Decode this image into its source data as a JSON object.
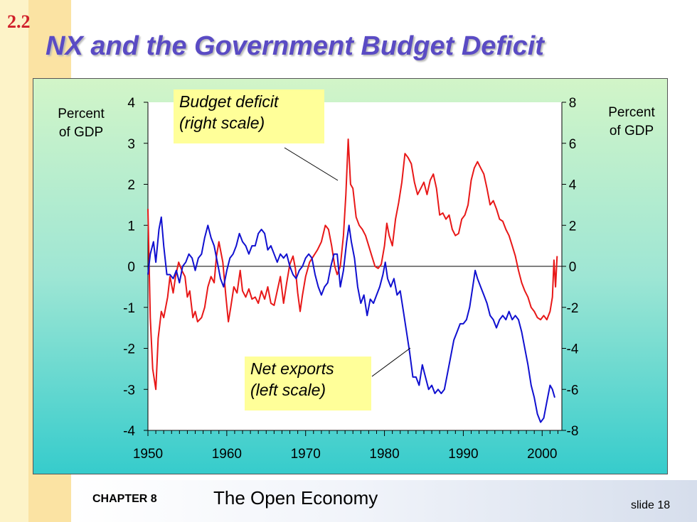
{
  "section_number": "2.2",
  "title": "NX and the Government Budget Deficit",
  "footer": {
    "chapter_label": "CHAPTER 8",
    "chapter_title": "The Open Economy",
    "slide_number": "slide 18"
  },
  "colors": {
    "budget_line": "#e81818",
    "nx_line": "#1010d0",
    "title": "#5a4bc4",
    "section": "#d0202a",
    "callout_bg": "#ffff99"
  },
  "chart_data": {
    "type": "line",
    "left_axis_label": "Percent\nof GDP",
    "right_axis_label": "Percent\nof GDP",
    "x_ticks": [
      1950,
      1960,
      1970,
      1980,
      1990,
      2000
    ],
    "xlim": [
      1950,
      2002.5
    ],
    "left_ylim": [
      -4,
      4
    ],
    "right_ylim": [
      -8,
      8
    ],
    "left_ticks": [
      -4,
      -3,
      -2,
      -1,
      0,
      1,
      2,
      3,
      4
    ],
    "right_ticks": [
      -8,
      -6,
      -4,
      -2,
      0,
      2,
      4,
      6,
      8
    ],
    "grid": false,
    "zero_line": true,
    "annotations": [
      {
        "text": "Budget deficit\n(right scale)",
        "series": "budget"
      },
      {
        "text": "Net exports\n(left scale)",
        "series": "nx"
      }
    ],
    "series": [
      {
        "name": "Budget deficit",
        "axis": "right",
        "points": [
          [
            1950,
            2.8
          ],
          [
            1950.3,
            -2.5
          ],
          [
            1950.6,
            -5
          ],
          [
            1951,
            -6
          ],
          [
            1951.3,
            -3.5
          ],
          [
            1951.7,
            -2.2
          ],
          [
            1952,
            -2.5
          ],
          [
            1952.5,
            -1.5
          ],
          [
            1952.8,
            -0.5
          ],
          [
            1953.2,
            -1.3
          ],
          [
            1953.5,
            -0.5
          ],
          [
            1953.9,
            0.2
          ],
          [
            1954.3,
            -0.2
          ],
          [
            1954.7,
            -0.5
          ],
          [
            1955,
            -1.5
          ],
          [
            1955.3,
            -1.2
          ],
          [
            1955.7,
            -2.5
          ],
          [
            1956,
            -2.2
          ],
          [
            1956.3,
            -2.7
          ],
          [
            1956.8,
            -2.5
          ],
          [
            1957.2,
            -2.0
          ],
          [
            1957.6,
            -1.0
          ],
          [
            1958,
            -0.5
          ],
          [
            1958.4,
            -0.8
          ],
          [
            1958.7,
            0.5
          ],
          [
            1959,
            1.2
          ],
          [
            1959.5,
            0.2
          ],
          [
            1959.9,
            -1.5
          ],
          [
            1960.2,
            -2.7
          ],
          [
            1960.5,
            -2.0
          ],
          [
            1960.9,
            -1.0
          ],
          [
            1961.3,
            -1.3
          ],
          [
            1961.7,
            -0.2
          ],
          [
            1962,
            -1.2
          ],
          [
            1962.4,
            -1.5
          ],
          [
            1962.8,
            -1.1
          ],
          [
            1963.2,
            -1.6
          ],
          [
            1963.6,
            -1.5
          ],
          [
            1964,
            -1.8
          ],
          [
            1964.4,
            -1.2
          ],
          [
            1964.8,
            -1.6
          ],
          [
            1965.2,
            -1.0
          ],
          [
            1965.6,
            -1.8
          ],
          [
            1966,
            -1.9
          ],
          [
            1966.4,
            -1.2
          ],
          [
            1966.8,
            -0.5
          ],
          [
            1967.2,
            -1.8
          ],
          [
            1967.6,
            -0.8
          ],
          [
            1968,
            0.1
          ],
          [
            1968.4,
            0.5
          ],
          [
            1968.7,
            -0.1
          ],
          [
            1969,
            -1.3
          ],
          [
            1969.3,
            -2.2
          ],
          [
            1969.6,
            -1.4
          ],
          [
            1970,
            -0.5
          ],
          [
            1970.5,
            0.2
          ],
          [
            1971,
            0.5
          ],
          [
            1971.5,
            0.8
          ],
          [
            1972,
            1.2
          ],
          [
            1972.5,
            2.0
          ],
          [
            1972.9,
            1.8
          ],
          [
            1973.3,
            1.0
          ],
          [
            1973.7,
            0.0
          ],
          [
            1974,
            -0.4
          ],
          [
            1974.4,
            0.0
          ],
          [
            1974.8,
            1.5
          ],
          [
            1975.1,
            3.5
          ],
          [
            1975.4,
            6.2
          ],
          [
            1975.7,
            4.0
          ],
          [
            1976,
            3.8
          ],
          [
            1976.4,
            2.4
          ],
          [
            1976.8,
            2.0
          ],
          [
            1977.2,
            1.8
          ],
          [
            1977.6,
            1.5
          ],
          [
            1978,
            1.0
          ],
          [
            1978.4,
            0.5
          ],
          [
            1978.8,
            0.0
          ],
          [
            1979.2,
            -0.1
          ],
          [
            1979.6,
            0.1
          ],
          [
            1980,
            1.0
          ],
          [
            1980.3,
            2.1
          ],
          [
            1980.6,
            1.5
          ],
          [
            1981,
            1.0
          ],
          [
            1981.4,
            2.3
          ],
          [
            1981.8,
            3.1
          ],
          [
            1982.2,
            4.1
          ],
          [
            1982.6,
            5.5
          ],
          [
            1983,
            5.3
          ],
          [
            1983.4,
            5.0
          ],
          [
            1983.8,
            4.1
          ],
          [
            1984.2,
            3.5
          ],
          [
            1984.6,
            3.8
          ],
          [
            1985,
            4.1
          ],
          [
            1985.4,
            3.5
          ],
          [
            1985.8,
            4.2
          ],
          [
            1986.2,
            4.5
          ],
          [
            1986.6,
            3.8
          ],
          [
            1987,
            2.5
          ],
          [
            1987.4,
            2.6
          ],
          [
            1987.8,
            2.3
          ],
          [
            1988.2,
            2.5
          ],
          [
            1988.6,
            1.8
          ],
          [
            1989,
            1.5
          ],
          [
            1989.4,
            1.6
          ],
          [
            1989.8,
            2.3
          ],
          [
            1990.2,
            2.5
          ],
          [
            1990.6,
            3.0
          ],
          [
            1991,
            4.2
          ],
          [
            1991.4,
            4.8
          ],
          [
            1991.8,
            5.1
          ],
          [
            1992.2,
            4.8
          ],
          [
            1992.6,
            4.5
          ],
          [
            1993,
            3.8
          ],
          [
            1993.4,
            3.0
          ],
          [
            1993.8,
            3.2
          ],
          [
            1994.2,
            2.8
          ],
          [
            1994.6,
            2.3
          ],
          [
            1995,
            2.2
          ],
          [
            1995.4,
            1.8
          ],
          [
            1995.8,
            1.5
          ],
          [
            1996.2,
            1.0
          ],
          [
            1996.6,
            0.5
          ],
          [
            1997,
            -0.2
          ],
          [
            1997.4,
            -0.8
          ],
          [
            1997.8,
            -1.2
          ],
          [
            1998.2,
            -1.5
          ],
          [
            1998.6,
            -2.0
          ],
          [
            1999,
            -2.2
          ],
          [
            1999.4,
            -2.5
          ],
          [
            1999.8,
            -2.6
          ],
          [
            2000.2,
            -2.4
          ],
          [
            2000.6,
            -2.6
          ],
          [
            2001,
            -2.2
          ],
          [
            2001.3,
            -1.5
          ],
          [
            2001.5,
            0.3
          ],
          [
            2001.7,
            -1.0
          ],
          [
            2001.9,
            0.5
          ]
        ]
      },
      {
        "name": "Net exports",
        "axis": "left",
        "points": [
          [
            1950,
            -0.2
          ],
          [
            1950.3,
            0.3
          ],
          [
            1950.7,
            0.6
          ],
          [
            1951,
            0.1
          ],
          [
            1951.4,
            0.9
          ],
          [
            1951.7,
            1.2
          ],
          [
            1952,
            0.5
          ],
          [
            1952.4,
            -0.2
          ],
          [
            1952.8,
            -0.2
          ],
          [
            1953.2,
            -0.3
          ],
          [
            1953.6,
            -0.1
          ],
          [
            1954,
            -0.4
          ],
          [
            1954.4,
            0.0
          ],
          [
            1954.8,
            0.1
          ],
          [
            1955.2,
            0.3
          ],
          [
            1955.6,
            0.2
          ],
          [
            1956,
            -0.1
          ],
          [
            1956.4,
            0.2
          ],
          [
            1956.8,
            0.3
          ],
          [
            1957.2,
            0.7
          ],
          [
            1957.6,
            1.0
          ],
          [
            1958,
            0.7
          ],
          [
            1958.4,
            0.5
          ],
          [
            1958.8,
            0.1
          ],
          [
            1959.2,
            -0.3
          ],
          [
            1959.6,
            -0.5
          ],
          [
            1960,
            -0.1
          ],
          [
            1960.4,
            0.2
          ],
          [
            1960.8,
            0.3
          ],
          [
            1961.2,
            0.5
          ],
          [
            1961.6,
            0.8
          ],
          [
            1962,
            0.6
          ],
          [
            1962.4,
            0.5
          ],
          [
            1962.8,
            0.3
          ],
          [
            1963.2,
            0.5
          ],
          [
            1963.6,
            0.5
          ],
          [
            1964,
            0.8
          ],
          [
            1964.4,
            0.9
          ],
          [
            1964.8,
            0.8
          ],
          [
            1965.2,
            0.4
          ],
          [
            1965.6,
            0.5
          ],
          [
            1966,
            0.3
          ],
          [
            1966.4,
            0.1
          ],
          [
            1966.8,
            0.3
          ],
          [
            1967.2,
            0.2
          ],
          [
            1967.6,
            0.3
          ],
          [
            1968,
            0.0
          ],
          [
            1968.4,
            -0.2
          ],
          [
            1968.8,
            -0.3
          ],
          [
            1969.2,
            -0.1
          ],
          [
            1969.6,
            0.0
          ],
          [
            1970,
            0.2
          ],
          [
            1970.4,
            0.3
          ],
          [
            1970.8,
            0.2
          ],
          [
            1971.2,
            -0.2
          ],
          [
            1971.6,
            -0.5
          ],
          [
            1972,
            -0.7
          ],
          [
            1972.4,
            -0.5
          ],
          [
            1972.8,
            -0.4
          ],
          [
            1973.2,
            0.0
          ],
          [
            1973.6,
            0.3
          ],
          [
            1974,
            0.3
          ],
          [
            1974.4,
            -0.5
          ],
          [
            1974.8,
            -0.1
          ],
          [
            1975.2,
            0.6
          ],
          [
            1975.5,
            1.0
          ],
          [
            1975.8,
            0.6
          ],
          [
            1976.2,
            0.2
          ],
          [
            1976.6,
            -0.5
          ],
          [
            1977,
            -0.9
          ],
          [
            1977.4,
            -0.7
          ],
          [
            1977.8,
            -1.2
          ],
          [
            1978.2,
            -0.8
          ],
          [
            1978.6,
            -0.9
          ],
          [
            1979,
            -0.7
          ],
          [
            1979.4,
            -0.5
          ],
          [
            1979.8,
            -0.2
          ],
          [
            1980.1,
            0.1
          ],
          [
            1980.4,
            -0.3
          ],
          [
            1980.8,
            -0.5
          ],
          [
            1981.2,
            -0.3
          ],
          [
            1981.6,
            -0.7
          ],
          [
            1982,
            -0.6
          ],
          [
            1982.4,
            -1.1
          ],
          [
            1982.8,
            -1.6
          ],
          [
            1983.2,
            -2.1
          ],
          [
            1983.6,
            -2.7
          ],
          [
            1984,
            -2.7
          ],
          [
            1984.4,
            -2.9
          ],
          [
            1984.8,
            -2.4
          ],
          [
            1985.2,
            -2.7
          ],
          [
            1985.6,
            -3.0
          ],
          [
            1986,
            -2.9
          ],
          [
            1986.4,
            -3.1
          ],
          [
            1986.8,
            -3.0
          ],
          [
            1987.2,
            -3.1
          ],
          [
            1987.6,
            -3.0
          ],
          [
            1988,
            -2.6
          ],
          [
            1988.4,
            -2.2
          ],
          [
            1988.8,
            -1.8
          ],
          [
            1989.2,
            -1.6
          ],
          [
            1989.6,
            -1.4
          ],
          [
            1990,
            -1.4
          ],
          [
            1990.4,
            -1.3
          ],
          [
            1990.8,
            -1.0
          ],
          [
            1991.2,
            -0.5
          ],
          [
            1991.5,
            -0.1
          ],
          [
            1991.8,
            -0.3
          ],
          [
            1992.2,
            -0.5
          ],
          [
            1992.6,
            -0.7
          ],
          [
            1993,
            -0.9
          ],
          [
            1993.4,
            -1.2
          ],
          [
            1993.8,
            -1.3
          ],
          [
            1994.2,
            -1.5
          ],
          [
            1994.6,
            -1.3
          ],
          [
            1995,
            -1.2
          ],
          [
            1995.4,
            -1.3
          ],
          [
            1995.8,
            -1.1
          ],
          [
            1996.2,
            -1.3
          ],
          [
            1996.6,
            -1.2
          ],
          [
            1997,
            -1.3
          ],
          [
            1997.4,
            -1.6
          ],
          [
            1997.8,
            -2.0
          ],
          [
            1998.2,
            -2.4
          ],
          [
            1998.6,
            -2.9
          ],
          [
            1999,
            -3.2
          ],
          [
            1999.4,
            -3.6
          ],
          [
            1999.8,
            -3.8
          ],
          [
            2000.2,
            -3.7
          ],
          [
            2000.6,
            -3.3
          ],
          [
            2001,
            -2.9
          ],
          [
            2001.3,
            -3.0
          ],
          [
            2001.6,
            -3.2
          ]
        ]
      }
    ]
  }
}
